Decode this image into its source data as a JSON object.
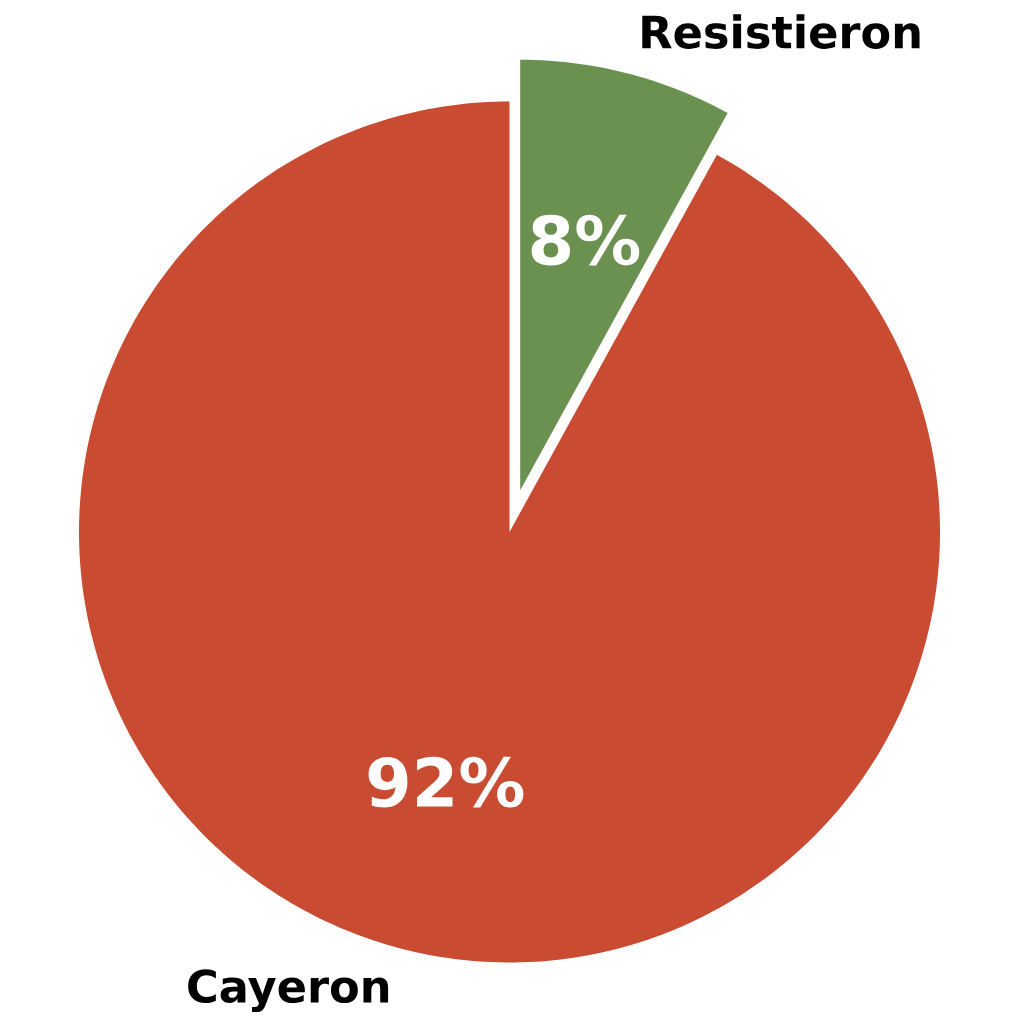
{
  "chart_data": {
    "type": "pie",
    "categories": [
      "Resistieron",
      "Cayeron"
    ],
    "values": [
      8,
      92
    ],
    "colors": [
      "#6b9150",
      "#c84b32"
    ],
    "value_labels": [
      "8%",
      "92%"
    ]
  }
}
